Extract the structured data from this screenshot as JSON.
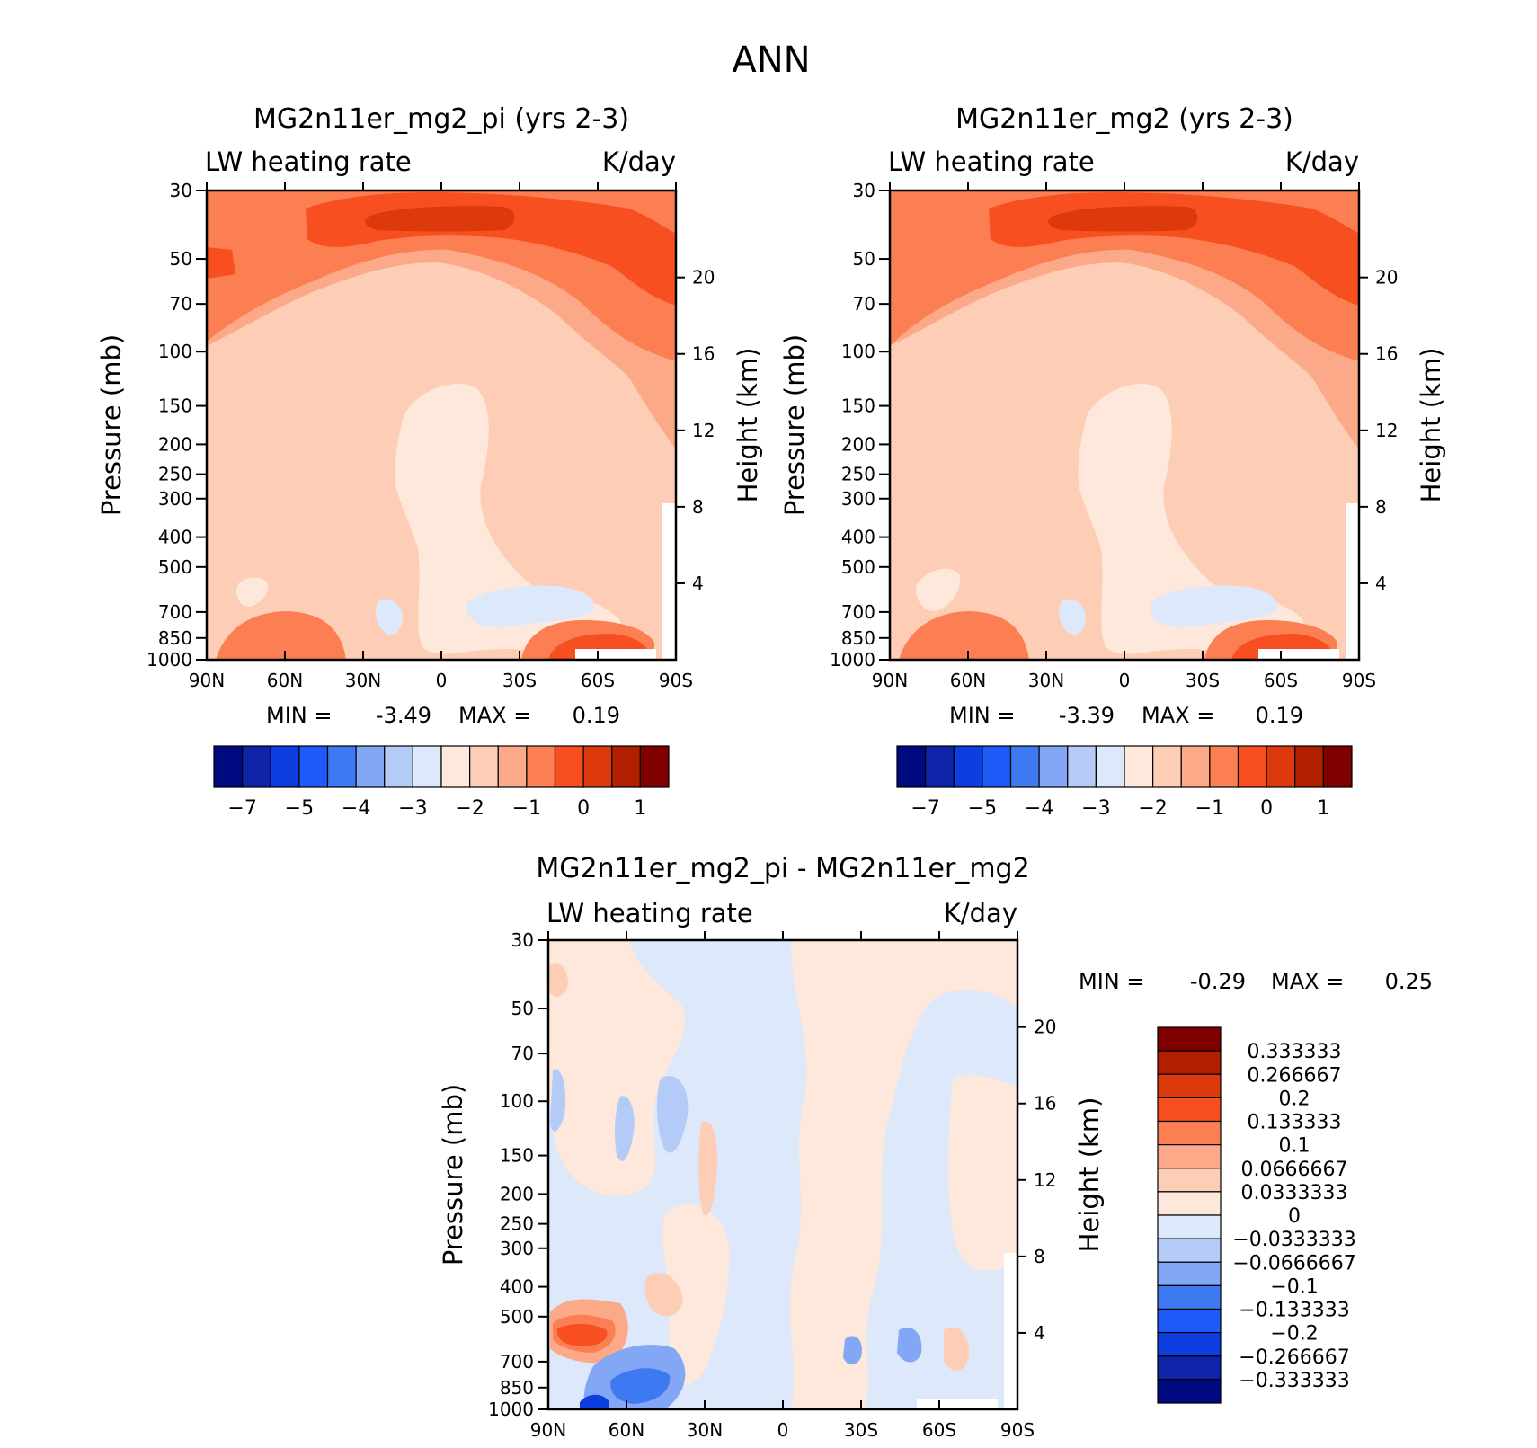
{
  "title": "ANN",
  "colors": {
    "full_scale": [
      "#000a80",
      "#0d24a8",
      "#0c3ee0",
      "#1e5af7",
      "#3d79f0",
      "#83a6f5",
      "#b5cbf7",
      "#dde8fb",
      "#fde8db",
      "#fdcdb5",
      "#fca98a",
      "#fb7f52",
      "#f84f20",
      "#dc3a0c",
      "#b01f00",
      "#800000"
    ],
    "frame": "#000000"
  },
  "chart_data": [
    {
      "type": "heatmap",
      "name": "panel-left",
      "title": "MG2n11er_mg2_pi (yrs 2-3)",
      "left_label": "LW heating rate",
      "right_label": "K/day",
      "xlabel": "",
      "ylabel": "Pressure (mb)",
      "y2label": "Height (km)",
      "x_ticks": [
        "90N",
        "60N",
        "30N",
        "0",
        "30S",
        "60S",
        "90S"
      ],
      "x_range": [
        90,
        -90
      ],
      "y_ticks": [
        30,
        50,
        70,
        100,
        150,
        200,
        250,
        300,
        400,
        500,
        700,
        850,
        1000
      ],
      "y_range": [
        30,
        1000
      ],
      "y2_ticks": [
        20,
        16,
        12,
        8,
        4
      ],
      "min_label": "MIN =",
      "min_value": "-3.49",
      "max_label": "MAX =",
      "max_value": "0.19",
      "colorbar_labels": [
        "-7",
        "-5",
        "-4",
        "-3",
        "-2",
        "-1",
        "0",
        "1"
      ],
      "levels": [
        -7,
        -6,
        -5,
        -4.5,
        -4,
        -3.5,
        -3,
        -2.5,
        -2,
        -1.5,
        -1,
        -0.5,
        0,
        0.5,
        1
      ]
    },
    {
      "type": "heatmap",
      "name": "panel-right",
      "title": "MG2n11er_mg2 (yrs 2-3)",
      "left_label": "LW heating rate",
      "right_label": "K/day",
      "xlabel": "",
      "ylabel": "Pressure (mb)",
      "y2label": "Height (km)",
      "x_ticks": [
        "90N",
        "60N",
        "30N",
        "0",
        "30S",
        "60S",
        "90S"
      ],
      "x_range": [
        90,
        -90
      ],
      "y_ticks": [
        30,
        50,
        70,
        100,
        150,
        200,
        250,
        300,
        400,
        500,
        700,
        850,
        1000
      ],
      "y_range": [
        30,
        1000
      ],
      "y2_ticks": [
        20,
        16,
        12,
        8,
        4
      ],
      "min_label": "MIN =",
      "min_value": "-3.39",
      "max_label": "MAX =",
      "max_value": "0.19",
      "colorbar_labels": [
        "-7",
        "-5",
        "-4",
        "-3",
        "-2",
        "-1",
        "0",
        "1"
      ],
      "levels": [
        -7,
        -6,
        -5,
        -4.5,
        -4,
        -3.5,
        -3,
        -2.5,
        -2,
        -1.5,
        -1,
        -0.5,
        0,
        0.5,
        1
      ]
    },
    {
      "type": "heatmap",
      "name": "panel-diff",
      "title": "MG2n11er_mg2_pi - MG2n11er_mg2",
      "left_label": "LW heating rate",
      "right_label": "K/day",
      "xlabel": "",
      "ylabel": "Pressure (mb)",
      "y2label": "Height (km)",
      "x_ticks": [
        "90N",
        "60N",
        "30N",
        "0",
        "30S",
        "60S",
        "90S"
      ],
      "x_range": [
        90,
        -90
      ],
      "y_ticks": [
        30,
        50,
        70,
        100,
        150,
        200,
        250,
        300,
        400,
        500,
        700,
        850,
        1000
      ],
      "y_range": [
        30,
        1000
      ],
      "y2_ticks": [
        20,
        16,
        12,
        8,
        4
      ],
      "min_label": "MIN =",
      "min_value": "-0.29",
      "max_label": "MAX =",
      "max_value": "0.25",
      "colorbar_labels": [
        "0.333333",
        "0.266667",
        "0.2",
        "0.133333",
        "0.1",
        "0.0666667",
        "0.0333333",
        "0",
        "-0.0333333",
        "-0.0666667",
        "-0.1",
        "-0.133333",
        "-0.2",
        "-0.266667",
        "-0.333333"
      ]
    }
  ]
}
